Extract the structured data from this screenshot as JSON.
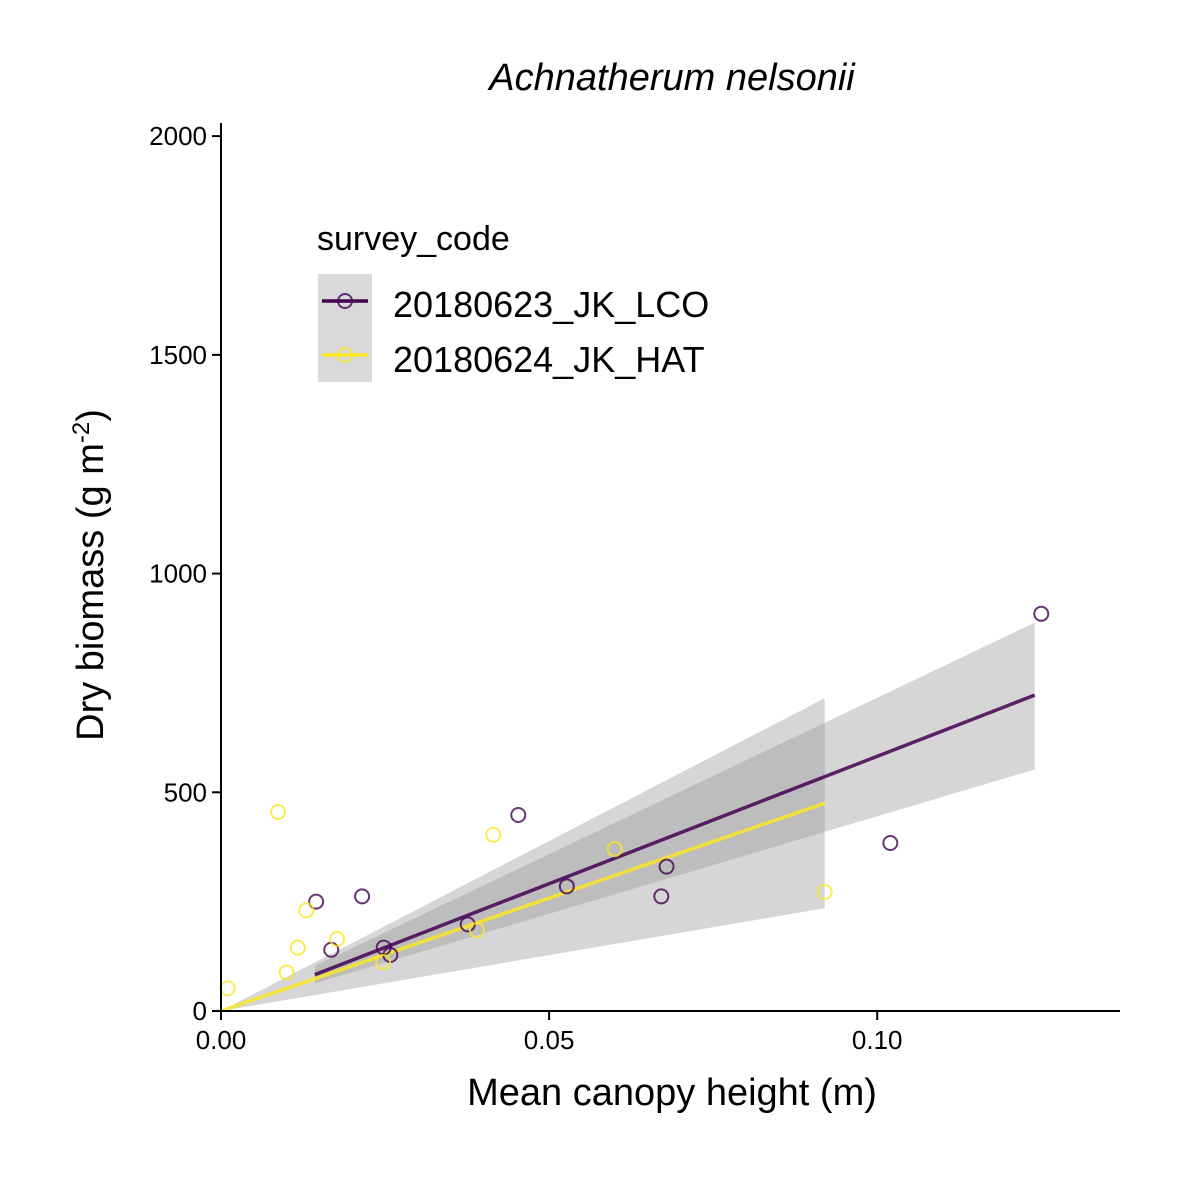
{
  "chart_data": {
    "type": "scatter",
    "title": "Achnatherum nelsonii",
    "xlabel": "Mean canopy height (m)",
    "ylabel_main": "Dry biomass (g m",
    "ylabel_sup": "-2",
    "ylabel_close": ")",
    "xlim": [
      0,
      0.137
    ],
    "ylim": [
      0,
      2030
    ],
    "x_ticks": [
      0,
      0.05,
      0.1
    ],
    "x_tick_labels": [
      "0.00",
      "0.05",
      "0.10"
    ],
    "y_ticks": [
      0,
      500,
      1000,
      1500,
      2000
    ],
    "y_tick_labels": [
      "0",
      "500",
      "1000",
      "1500",
      "2000"
    ],
    "grid": false,
    "legend": {
      "title": "survey_code",
      "placement": "top-left"
    },
    "series": [
      {
        "name": "20180623_JK_LCO",
        "color": "#440154",
        "points": [
          {
            "x": 0.0145,
            "y": 250
          },
          {
            "x": 0.0168,
            "y": 140
          },
          {
            "x": 0.0215,
            "y": 262
          },
          {
            "x": 0.0248,
            "y": 145
          },
          {
            "x": 0.0258,
            "y": 128
          },
          {
            "x": 0.0376,
            "y": 198
          },
          {
            "x": 0.0453,
            "y": 448
          },
          {
            "x": 0.0527,
            "y": 285
          },
          {
            "x": 0.0671,
            "y": 262
          },
          {
            "x": 0.0679,
            "y": 330
          },
          {
            "x": 0.102,
            "y": 384
          },
          {
            "x": 0.125,
            "y": 908
          }
        ],
        "fit": {
          "x_start": 0.0143,
          "y_start": 83,
          "x_end": 0.124,
          "y_end": 722
        },
        "ci": [
          {
            "x": 0.0143,
            "lower": 63,
            "upper": 103
          },
          {
            "x": 0.124,
            "lower": 552,
            "upper": 888
          }
        ]
      },
      {
        "name": "20180624_JK_HAT",
        "color": "#FDE725",
        "points": [
          {
            "x": 0.001,
            "y": 52
          },
          {
            "x": 0.0087,
            "y": 455
          },
          {
            "x": 0.01,
            "y": 88
          },
          {
            "x": 0.0117,
            "y": 145
          },
          {
            "x": 0.013,
            "y": 230
          },
          {
            "x": 0.0177,
            "y": 165
          },
          {
            "x": 0.0247,
            "y": 112
          },
          {
            "x": 0.039,
            "y": 185
          },
          {
            "x": 0.0415,
            "y": 403
          },
          {
            "x": 0.06,
            "y": 370
          },
          {
            "x": 0.092,
            "y": 272
          }
        ],
        "fit": {
          "x_start": 0.0,
          "y_start": 0,
          "x_end": 0.092,
          "y_end": 475
        },
        "ci": [
          {
            "x": 0.0,
            "lower": 0,
            "upper": 0
          },
          {
            "x": 0.092,
            "lower": 235,
            "upper": 715
          }
        ]
      }
    ]
  }
}
